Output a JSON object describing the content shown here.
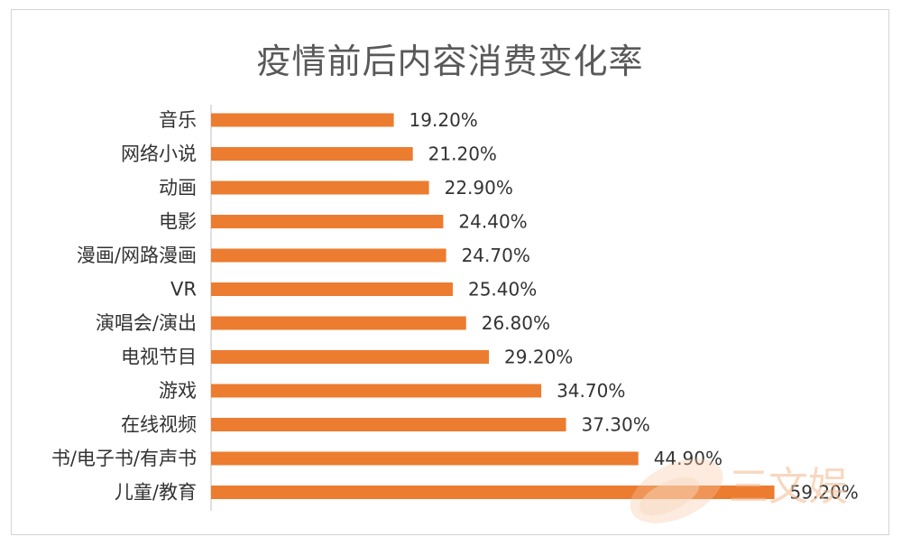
{
  "chart_data": {
    "type": "bar",
    "orientation": "horizontal",
    "title": "疫情前后内容消费变化率",
    "categories": [
      "音乐",
      "网络小说",
      "动画",
      "电影",
      "漫画/网路漫画",
      "VR",
      "演唱会/演出",
      "电视节目",
      "游戏",
      "在线视频",
      "书/电子书/有声书",
      "儿童/教育"
    ],
    "values": [
      19.2,
      21.2,
      22.9,
      24.4,
      24.7,
      25.4,
      26.8,
      29.2,
      34.7,
      37.3,
      44.9,
      59.2
    ],
    "value_labels": [
      "19.20%",
      "21.20%",
      "22.90%",
      "24.40%",
      "24.70%",
      "25.40%",
      "26.80%",
      "29.20%",
      "34.70%",
      "37.30%",
      "44.90%",
      "59.20%"
    ],
    "bar_color": "#ec7c30",
    "xlim": [
      0,
      60
    ],
    "grid": false,
    "legend": "none"
  },
  "watermark": {
    "text": "三文娱",
    "color": "#f4b98d"
  }
}
